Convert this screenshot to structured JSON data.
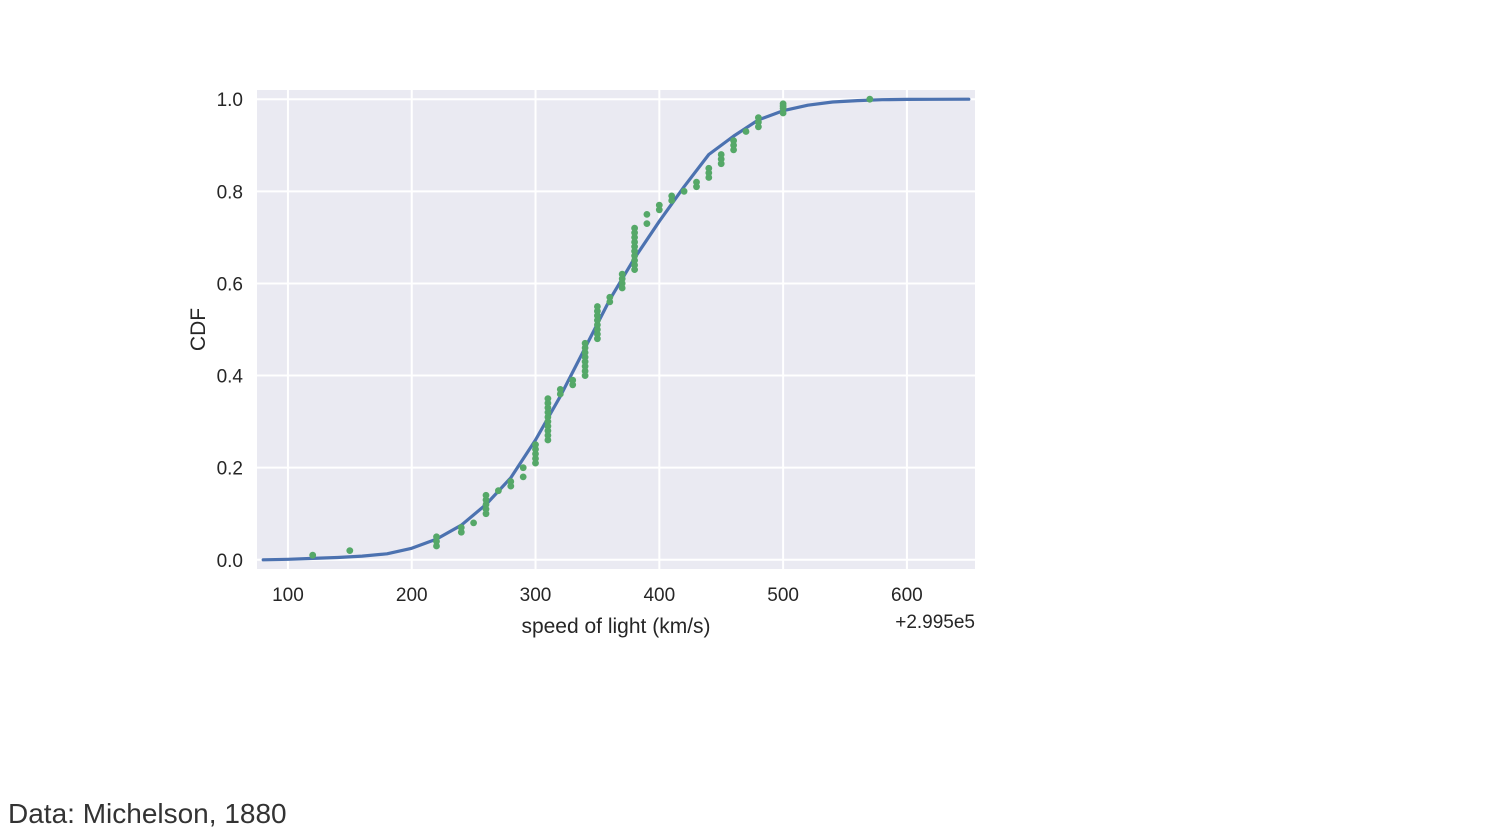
{
  "caption": "Data: Michelson, 1880",
  "chart_data": {
    "type": "line",
    "title": "",
    "xlabel": "speed of light (km/s)",
    "ylabel": "CDF",
    "x_offset_label": "+2.995e5",
    "xlim": [
      75,
      655
    ],
    "ylim": [
      -0.02,
      1.02
    ],
    "x_ticks": [
      100,
      200,
      300,
      400,
      500,
      600
    ],
    "x_tick_labels": [
      "100",
      "200",
      "300",
      "400",
      "500",
      "600"
    ],
    "y_ticks": [
      0.0,
      0.2,
      0.4,
      0.6,
      0.8,
      1.0
    ],
    "y_tick_labels": [
      "0.0",
      "0.2",
      "0.4",
      "0.6",
      "0.8",
      "1.0"
    ],
    "grid": true,
    "background": "#eaeaf2",
    "series": [
      {
        "kind": "line",
        "color": "#4c72b0",
        "x": [
          80,
          100,
          120,
          140,
          160,
          180,
          200,
          220,
          240,
          260,
          280,
          300,
          320,
          340,
          360,
          380,
          400,
          420,
          440,
          460,
          480,
          500,
          520,
          540,
          560,
          580,
          600,
          620,
          650
        ],
        "y": [
          0.0,
          0.001,
          0.003,
          0.005,
          0.008,
          0.013,
          0.025,
          0.045,
          0.075,
          0.12,
          0.178,
          0.26,
          0.355,
          0.46,
          0.565,
          0.655,
          0.735,
          0.81,
          0.88,
          0.92,
          0.955,
          0.975,
          0.987,
          0.994,
          0.997,
          0.999,
          0.9995,
          0.9998,
          1.0
        ]
      },
      {
        "kind": "scatter",
        "color": "#55a868",
        "x": [
          120,
          150,
          220,
          220,
          220,
          240,
          240,
          250,
          260,
          260,
          260,
          260,
          260,
          270,
          280,
          280,
          290,
          290,
          300,
          300,
          300,
          300,
          300,
          310,
          310,
          310,
          310,
          310,
          310,
          310,
          310,
          310,
          310,
          320,
          320,
          330,
          330,
          340,
          340,
          340,
          340,
          340,
          340,
          340,
          340,
          350,
          350,
          350,
          350,
          350,
          350,
          350,
          350,
          360,
          360,
          370,
          370,
          370,
          370,
          380,
          380,
          380,
          380,
          380,
          380,
          380,
          380,
          380,
          380,
          390,
          390,
          400,
          400,
          410,
          410,
          420,
          430,
          430,
          440,
          440,
          440,
          450,
          450,
          450,
          460,
          460,
          460,
          470,
          480,
          480,
          480,
          500,
          500,
          500,
          500,
          570
        ],
        "y": [
          0.01,
          0.02,
          0.03,
          0.04,
          0.05,
          0.06,
          0.07,
          0.08,
          0.1,
          0.11,
          0.12,
          0.13,
          0.14,
          0.15,
          0.16,
          0.17,
          0.18,
          0.2,
          0.21,
          0.22,
          0.23,
          0.24,
          0.25,
          0.26,
          0.27,
          0.28,
          0.29,
          0.3,
          0.31,
          0.32,
          0.33,
          0.34,
          0.35,
          0.36,
          0.37,
          0.38,
          0.39,
          0.4,
          0.41,
          0.42,
          0.43,
          0.44,
          0.45,
          0.46,
          0.47,
          0.48,
          0.49,
          0.5,
          0.51,
          0.52,
          0.53,
          0.54,
          0.55,
          0.56,
          0.57,
          0.59,
          0.6,
          0.61,
          0.62,
          0.63,
          0.64,
          0.65,
          0.66,
          0.67,
          0.68,
          0.69,
          0.7,
          0.71,
          0.72,
          0.73,
          0.75,
          0.76,
          0.77,
          0.78,
          0.79,
          0.8,
          0.81,
          0.82,
          0.83,
          0.84,
          0.85,
          0.86,
          0.87,
          0.88,
          0.89,
          0.9,
          0.91,
          0.93,
          0.94,
          0.95,
          0.96,
          0.97,
          0.98,
          0.99,
          0.985,
          1.0
        ]
      }
    ]
  }
}
